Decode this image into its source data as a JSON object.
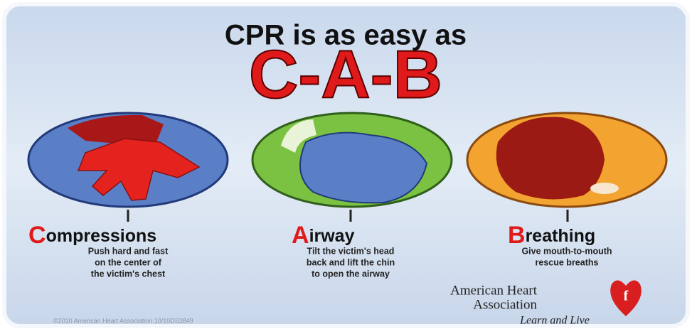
{
  "header": {
    "title": "CPR is as easy as",
    "acronym": "C-A-B"
  },
  "steps": [
    {
      "initial": "C",
      "rest": "ompressions",
      "lines": [
        "Push hard and fast",
        "on the center of",
        "the victim's chest"
      ]
    },
    {
      "initial": "A",
      "rest": "irway",
      "lines": [
        "Tilt the victim's head",
        "back and lift the chin",
        "to open the airway"
      ]
    },
    {
      "initial": "B",
      "rest": "reathing",
      "lines": [
        "Give mouth-to-mouth",
        "rescue breaths"
      ]
    }
  ],
  "logo": {
    "line1": "American Heart",
    "line2": "Association",
    "tagline": "Learn and Live"
  },
  "footer": "©2010 American Heart Association 10/10DS3849"
}
